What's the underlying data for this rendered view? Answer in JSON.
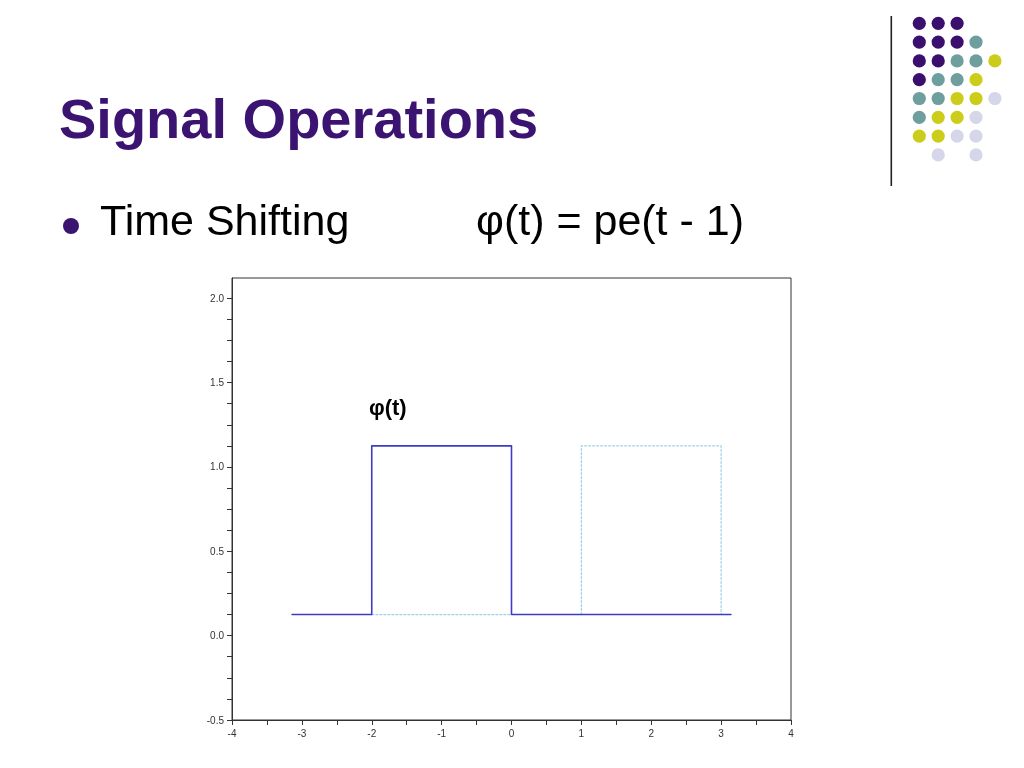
{
  "chart_data": {
    "type": "line",
    "title": "Signal Operations",
    "subtitle": "Time Shifting",
    "annotations": [
      "φ(t) = pe(t - 1)"
    ],
    "series": [
      {
        "name": "φ(t)",
        "color": "#3d3dc4",
        "x": [
          -3.14,
          -2,
          -2,
          0,
          0,
          3.14
        ],
        "values": [
          0.125,
          0.125,
          1.125,
          1.125,
          0.125,
          0.125
        ]
      },
      {
        "color": "#9fd0ea",
        "line_style": "dotted",
        "x": [
          -2,
          0,
          0.5,
          1,
          1,
          3,
          3
        ],
        "values": [
          0.125,
          0.125,
          null,
          0.125,
          1.125,
          1.125,
          0.125
        ]
      }
    ],
    "xlim": [
      -4,
      4
    ],
    "xticks": [
      -4,
      {
        "value": -3.5,
        "label": null
      },
      -3,
      {
        "value": -2.5,
        "label": null
      },
      -2,
      {
        "value": -1.5,
        "label": null
      },
      -1,
      {
        "value": -0.5,
        "label": null
      },
      0,
      {
        "value": 0.5,
        "label": null
      },
      1,
      {
        "value": 1.5,
        "label": null
      },
      2,
      {
        "value": 2.5,
        "label": null
      },
      3,
      {
        "value": 3.5,
        "label": null
      },
      4
    ],
    "ylim": [
      -0.5,
      2.12
    ],
    "yticks": [
      -0.5,
      {
        "value": -0.375,
        "label": null
      },
      {
        "value": -0.25,
        "label": null
      },
      {
        "value": -0.125,
        "label": null
      },
      {
        "value": 0,
        "label": "0.0"
      },
      {
        "value": 0.125,
        "label": null
      },
      {
        "value": 0.25,
        "label": null
      },
      {
        "value": 0.375,
        "label": null
      },
      0.5,
      {
        "value": 0.625,
        "label": null
      },
      {
        "value": 0.75,
        "label": null
      },
      {
        "value": 0.875,
        "label": null
      },
      {
        "value": 1,
        "label": "1.0"
      },
      {
        "value": 1.125,
        "label": null
      },
      {
        "value": 1.25,
        "label": null
      },
      {
        "value": 1.375,
        "label": null
      },
      1.5,
      {
        "value": 1.625,
        "label": null
      },
      {
        "value": 1.75,
        "label": null
      },
      {
        "value": 1.875,
        "label": null
      },
      {
        "value": 2,
        "label": "2.0"
      }
    ],
    "grid": false,
    "legend": false,
    "marker": "none",
    "line_style": "solid"
  }
}
